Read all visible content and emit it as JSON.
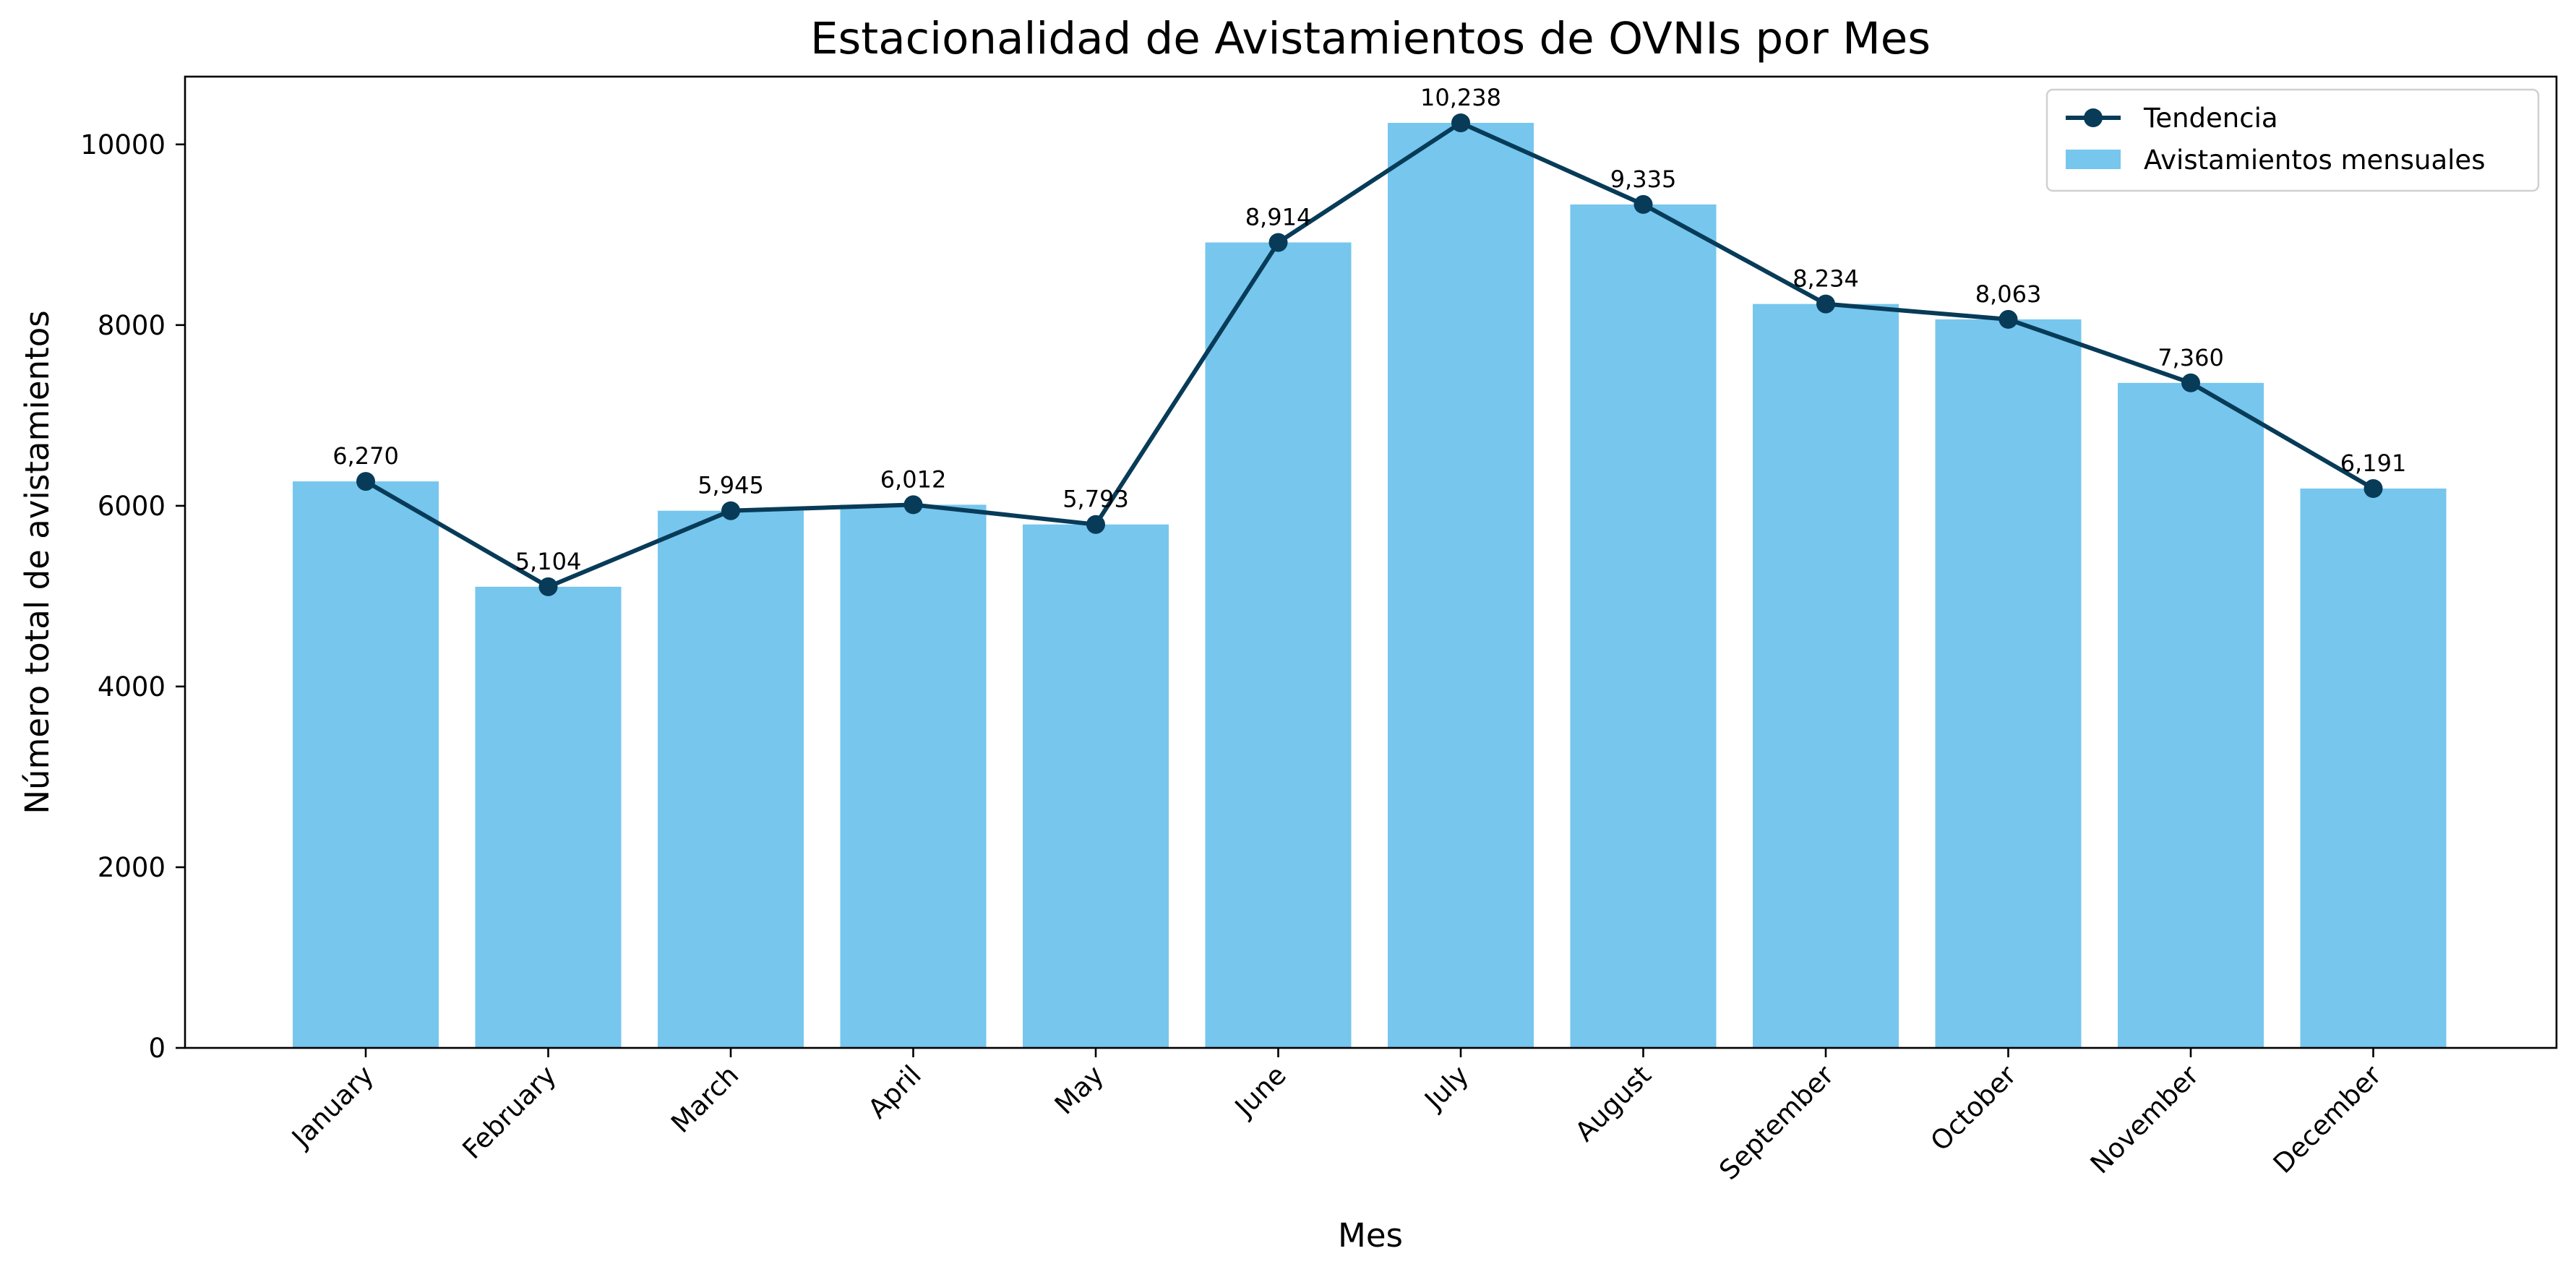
{
  "chart_data": {
    "type": "bar",
    "title": "Estacionalidad de Avistamientos de OVNIs por Mes",
    "xlabel": "Mes",
    "ylabel": "Número total de avistamientos",
    "categories": [
      "January",
      "February",
      "March",
      "April",
      "May",
      "June",
      "July",
      "August",
      "September",
      "October",
      "November",
      "December"
    ],
    "series": [
      {
        "name": "Avistamientos mensuales",
        "type": "bar",
        "color": "#76c6ee",
        "values": [
          6270,
          5104,
          5945,
          6012,
          5793,
          8914,
          10238,
          9335,
          8234,
          8063,
          7360,
          6191
        ]
      },
      {
        "name": "Tendencia",
        "type": "line",
        "color": "#073b58",
        "values": [
          6270,
          5104,
          5945,
          6012,
          5793,
          8914,
          10238,
          9335,
          8234,
          8063,
          7360,
          6191
        ]
      }
    ],
    "data_labels": [
      "6,270",
      "5,104",
      "5,945",
      "6,012",
      "5,793",
      "8,914",
      "10,238",
      "9,335",
      "8,234",
      "8,063",
      "7,360",
      "6,191"
    ],
    "ylim": [
      0,
      10750
    ],
    "yticks": [
      0,
      2000,
      4000,
      6000,
      8000,
      10000
    ],
    "grid": false,
    "legend_position": "top-right",
    "x_tick_rotation_deg": 45
  }
}
